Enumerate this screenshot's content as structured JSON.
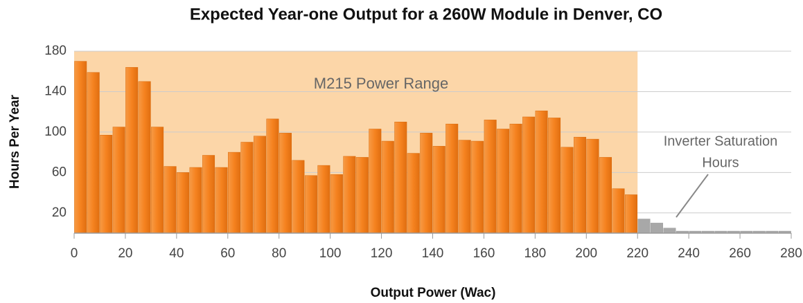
{
  "chart_data": {
    "type": "histogram",
    "title": "Expected Year-one Output for a 260W Module in Denver, CO",
    "x_label": "Output Power (Wac)",
    "y_label": "Hours Per Year",
    "bins": [
      0,
      5,
      10,
      15,
      20,
      25,
      30,
      35,
      40,
      45,
      50,
      55,
      60,
      65,
      70,
      75,
      80,
      85,
      90,
      95,
      100,
      105,
      110,
      115,
      120,
      125,
      130,
      135,
      140,
      145,
      150,
      155,
      160,
      165,
      170,
      175,
      180,
      185,
      190,
      195,
      200,
      205,
      210,
      215,
      220,
      225,
      230,
      235,
      240,
      245,
      250,
      255,
      260,
      265,
      270,
      275,
      280
    ],
    "values": [
      170,
      159,
      97,
      105,
      164,
      150,
      105,
      66,
      60,
      65,
      77,
      65,
      80,
      90,
      96,
      113,
      99,
      72,
      57,
      67,
      58,
      76,
      75,
      103,
      91,
      110,
      79,
      99,
      86,
      108,
      92,
      91,
      112,
      103,
      108,
      115,
      121,
      114,
      85,
      95,
      93,
      75,
      44,
      38,
      14,
      10,
      5,
      2,
      2,
      2,
      2,
      2,
      2,
      2,
      2,
      2
    ],
    "color": "#f5821f",
    "overflow_color": "#a8a8a8",
    "range_color": "#fcd6a8",
    "range": [
      0,
      220
    ],
    "annotations": [
      "M215 Power Range",
      "Inverter Saturation",
      "Hours"
    ],
    "xlim": [
      0,
      280
    ],
    "xticks": [
      0,
      20,
      40,
      60,
      80,
      100,
      120,
      140,
      160,
      180,
      200,
      220,
      240,
      260,
      280
    ],
    "ylim": [
      0,
      180
    ],
    "yticks": [
      20,
      60,
      100,
      140,
      180
    ],
    "grid": true
  }
}
